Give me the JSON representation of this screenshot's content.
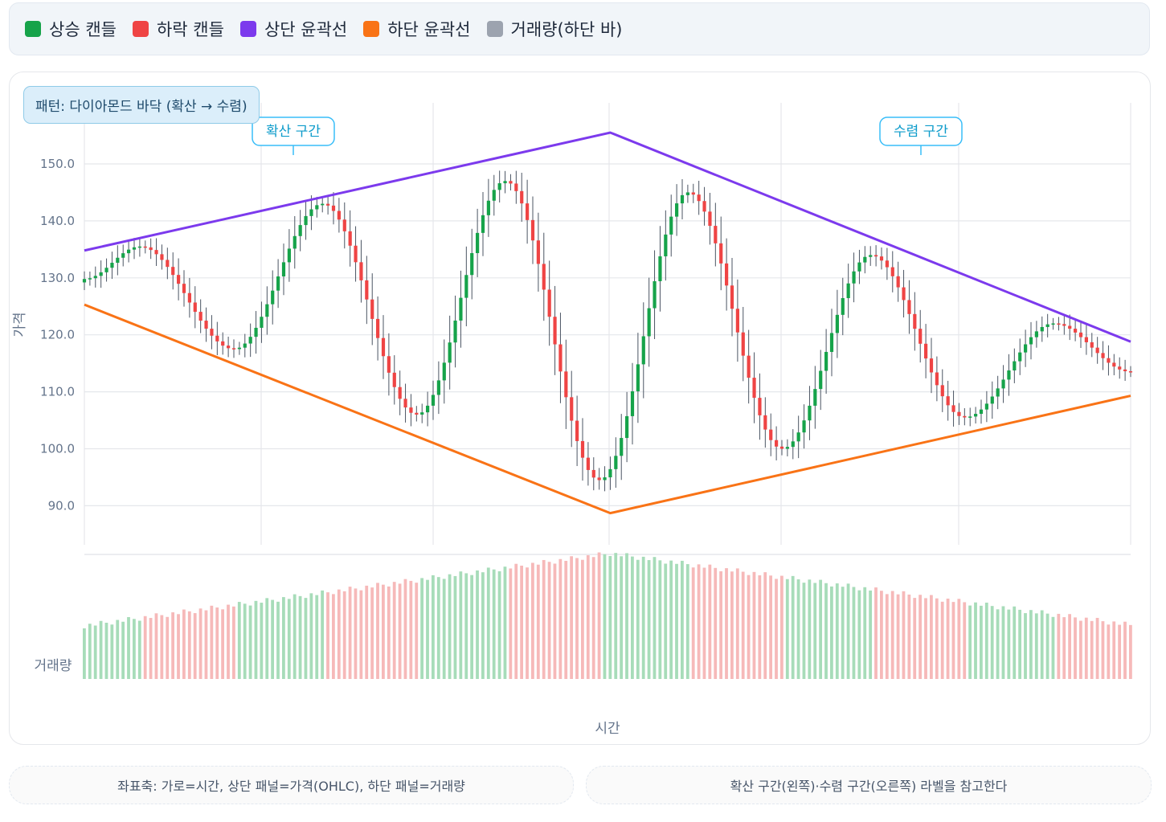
{
  "legend": [
    {
      "label": "상승 캔들",
      "color": "#16a34a"
    },
    {
      "label": "하락 캔들",
      "color": "#ef4444"
    },
    {
      "label": "상단 윤곽선",
      "color": "#7c3aed"
    },
    {
      "label": "하단 윤곽선",
      "color": "#f97316"
    },
    {
      "label": "거래량(하단 바)",
      "color": "#9ca3af"
    }
  ],
  "badge": "패턴: 다이아몬드 바닥 (확산 → 수렴)",
  "zones": {
    "left": "확산 구간",
    "right": "수렴 구간"
  },
  "footnotes": {
    "left": "좌표축: 가로=시간, 상단 패널=가격(OHLC), 하단 패널=거래량",
    "right": "확산 구간(왼쪽)·수렴 구간(오른쪽) 라벨을 참고한다"
  },
  "chart_data": {
    "type": "candlestick",
    "ylabel": "가격",
    "volume_label": "거래량",
    "xlabel": "시간",
    "y_ticks": [
      90,
      100,
      110,
      120,
      130,
      140,
      150
    ],
    "ylim": [
      84,
      158
    ],
    "n_candles": 190,
    "wave": {
      "peaks_index": [
        10,
        43,
        76,
        109,
        142,
        175
      ],
      "troughs_index": [
        27,
        60,
        93,
        126,
        159
      ],
      "approx_closes_at_extremes": [
        135.5,
        117.5,
        143,
        106,
        147,
        94.5,
        145,
        100,
        134,
        105.5,
        122
      ]
    },
    "upper_outline": [
      {
        "x": 0,
        "y": 134.8
      },
      {
        "x": 95,
        "y": 155.5
      },
      {
        "x": 189,
        "y": 118.8
      }
    ],
    "lower_outline": [
      {
        "x": 0,
        "y": 125.3
      },
      {
        "x": 95,
        "y": 88.7
      },
      {
        "x": 189,
        "y": 109.3
      }
    ],
    "colors": {
      "up": "#16a34a",
      "down": "#ef4444",
      "upper": "#7c3aed",
      "lower": "#f97316",
      "vol_up": "#a7dcb9",
      "vol_down": "#f6b9b9"
    },
    "grid": true
  }
}
